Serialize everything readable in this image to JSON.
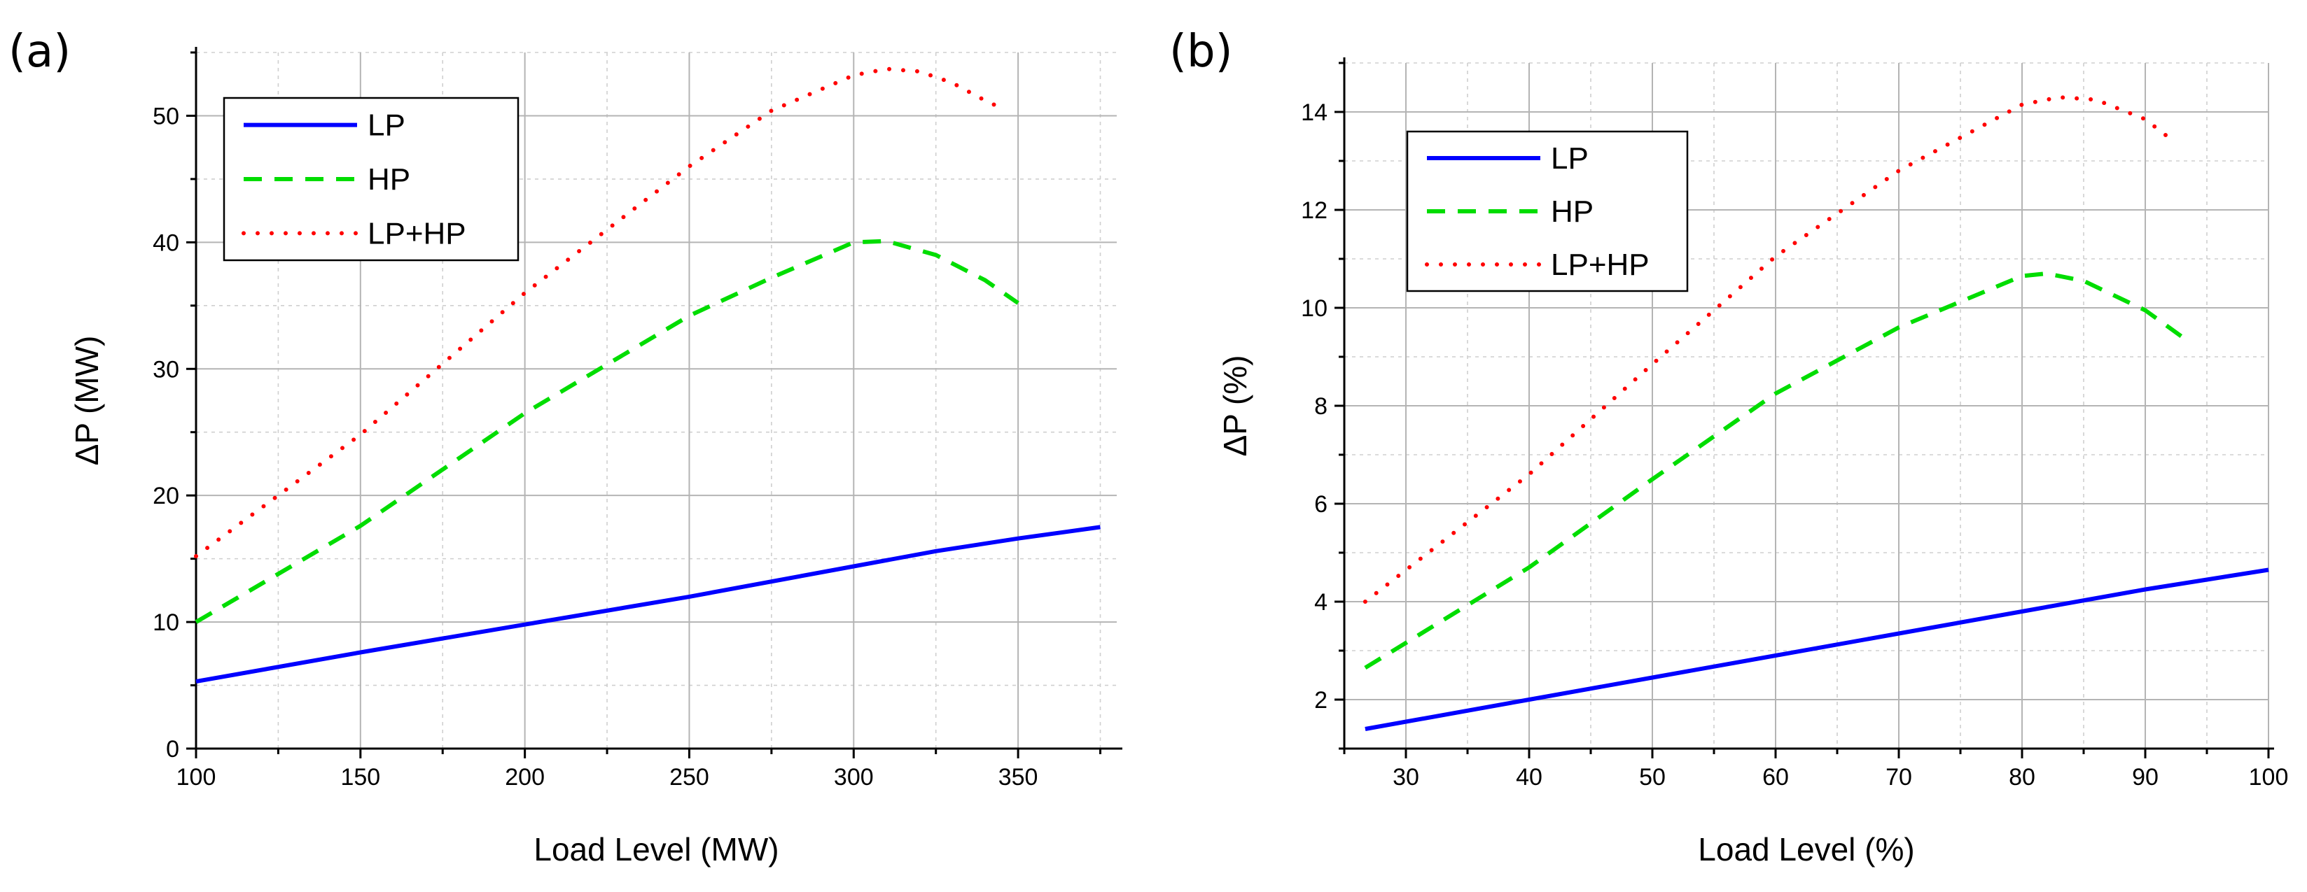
{
  "chart_data": [
    {
      "type": "line",
      "panel_label": "(a)",
      "xlabel": "Load Level (MW)",
      "ylabel": "ΔP (MW)",
      "xlim": [
        100,
        380
      ],
      "ylim": [
        0,
        55
      ],
      "xticks": [
        100,
        150,
        200,
        250,
        300,
        350
      ],
      "yticks": [
        0,
        10,
        20,
        30,
        40,
        50
      ],
      "x_minor_step": 25,
      "y_minor_step": 5,
      "legend_position": "top-left",
      "series": [
        {
          "name": "LP",
          "color": "#0000ff",
          "style": "solid",
          "x": [
            100,
            150,
            200,
            250,
            300,
            325,
            350,
            375
          ],
          "y": [
            5.3,
            7.6,
            9.8,
            12.0,
            14.4,
            15.6,
            16.6,
            17.5
          ]
        },
        {
          "name": "HP",
          "color": "#00dd00",
          "style": "dashed",
          "x": [
            100,
            150,
            200,
            250,
            275,
            300,
            310,
            325,
            340,
            350
          ],
          "y": [
            10.0,
            17.6,
            26.5,
            34.2,
            37.2,
            40.0,
            40.1,
            39.0,
            37.0,
            35.2
          ]
        },
        {
          "name": "LP+HP",
          "color": "#ff0000",
          "style": "dotted",
          "x": [
            100,
            150,
            200,
            250,
            275,
            300,
            310,
            320,
            330,
            340,
            345
          ],
          "y": [
            15.2,
            24.8,
            36.0,
            46.0,
            50.4,
            53.2,
            53.7,
            53.5,
            52.6,
            51.2,
            50.6
          ]
        }
      ]
    },
    {
      "type": "line",
      "panel_label": "(b)",
      "xlabel": "Load Level (%)",
      "ylabel": "ΔP (%)",
      "xlim": [
        25,
        100
      ],
      "ylim": [
        1,
        15
      ],
      "xticks": [
        30,
        40,
        50,
        60,
        70,
        80,
        90,
        100
      ],
      "yticks": [
        2,
        4,
        6,
        8,
        10,
        12,
        14
      ],
      "x_minor_step": 5,
      "y_minor_step": 1,
      "legend_position": "top-left",
      "series": [
        {
          "name": "LP",
          "color": "#0000ff",
          "style": "solid",
          "x": [
            26.7,
            40,
            50,
            60,
            70,
            80,
            90,
            100
          ],
          "y": [
            1.4,
            2.0,
            2.45,
            2.9,
            3.35,
            3.8,
            4.25,
            4.65
          ]
        },
        {
          "name": "HP",
          "color": "#00dd00",
          "style": "dashed",
          "x": [
            26.7,
            40,
            50,
            60,
            70,
            80,
            82,
            85,
            90,
            93.3
          ],
          "y": [
            2.65,
            4.7,
            6.5,
            8.25,
            9.6,
            10.65,
            10.7,
            10.55,
            9.95,
            9.35
          ]
        },
        {
          "name": "LP+HP",
          "color": "#ff0000",
          "style": "dotted",
          "x": [
            26.7,
            40,
            50,
            60,
            70,
            80,
            83,
            86,
            90,
            92.3
          ],
          "y": [
            4.0,
            6.6,
            8.85,
            11.05,
            12.8,
            14.15,
            14.3,
            14.25,
            13.85,
            13.4
          ]
        }
      ]
    }
  ]
}
